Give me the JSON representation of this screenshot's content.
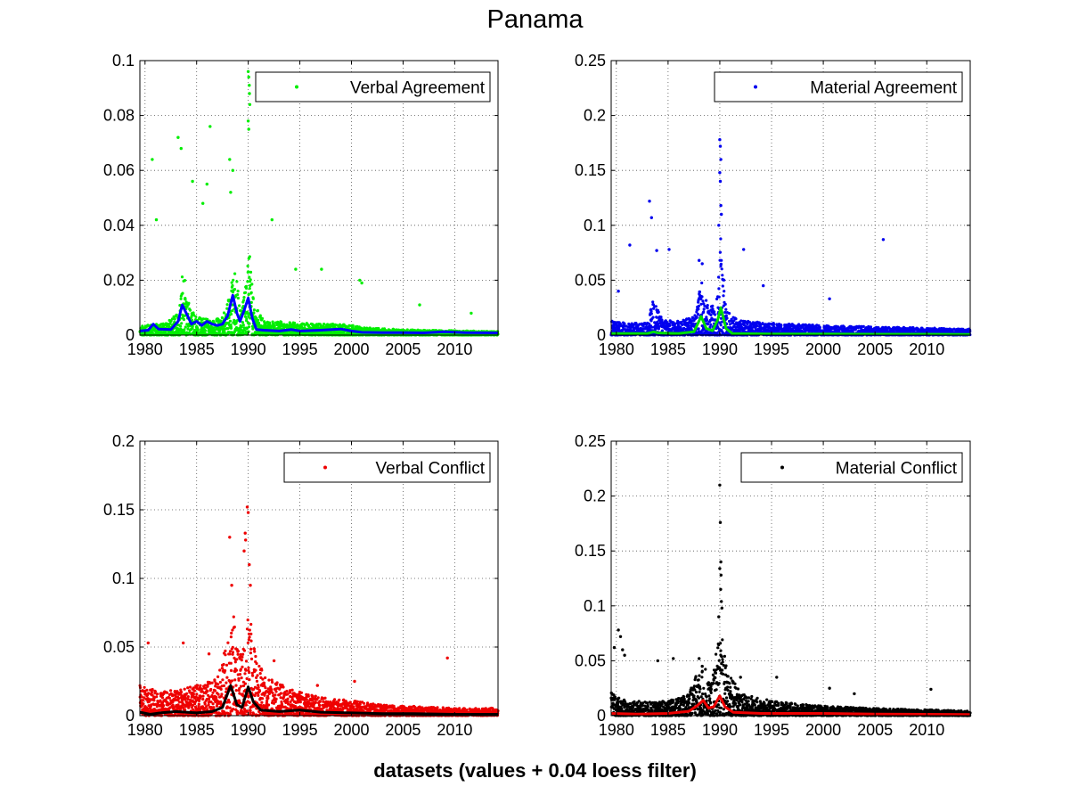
{
  "figure": {
    "title": "Panama",
    "xlabel": "datasets (values + 0.04 loess filter)"
  },
  "chart_data": [
    {
      "type": "scatter",
      "panel": "top-left",
      "legend_label": "Verbal Agreement",
      "legend_location": "top-right",
      "grid": true,
      "xlim": [
        1979.5,
        2014.2
      ],
      "ylim": [
        0,
        0.1
      ],
      "xticks": [
        1980,
        1985,
        1990,
        1995,
        2000,
        2005,
        2010
      ],
      "yticks": [
        0,
        0.02,
        0.04,
        0.06,
        0.08,
        0.1
      ],
      "ytick_labels": [
        "0",
        "0.02",
        "0.04",
        "0.06",
        "0.08",
        "0.1"
      ],
      "colors": {
        "points": "#00ee00",
        "smooth": "#0000ff"
      },
      "profile": [
        [
          1979.5,
          0.003
        ],
        [
          1982,
          0.004
        ],
        [
          1983.3,
          0.008
        ],
        [
          1983.7,
          0.024
        ],
        [
          1984.3,
          0.009
        ],
        [
          1985,
          0.006
        ],
        [
          1986.5,
          0.005
        ],
        [
          1987.5,
          0.006
        ],
        [
          1988.2,
          0.014
        ],
        [
          1988.7,
          0.025
        ],
        [
          1989.2,
          0.008
        ],
        [
          1989.8,
          0.017
        ],
        [
          1990.1,
          0.03
        ],
        [
          1990.6,
          0.01
        ],
        [
          1991.5,
          0.005
        ],
        [
          1995,
          0.004
        ],
        [
          2000,
          0.0035
        ],
        [
          2001,
          0.0025
        ],
        [
          2005,
          0.0018
        ],
        [
          2010,
          0.0015
        ],
        [
          2014.2,
          0.0012
        ]
      ],
      "outliers": [
        [
          1983.2,
          0.072
        ],
        [
          1983.5,
          0.068
        ],
        [
          1986.3,
          0.076
        ],
        [
          1980.7,
          0.064
        ],
        [
          1981.1,
          0.042
        ],
        [
          1988.2,
          0.064
        ],
        [
          1988.5,
          0.06
        ],
        [
          1988.3,
          0.052
        ],
        [
          1990.0,
          0.096
        ],
        [
          1990.05,
          0.094
        ],
        [
          1990.1,
          0.091
        ],
        [
          1990.12,
          0.088
        ],
        [
          1990.15,
          0.084
        ],
        [
          1990.0,
          0.078
        ],
        [
          1990.05,
          0.075
        ],
        [
          1992.3,
          0.042
        ],
        [
          1986.0,
          0.055
        ],
        [
          1984.6,
          0.056
        ],
        [
          1985.6,
          0.048
        ],
        [
          2000.8,
          0.02
        ],
        [
          2001.0,
          0.019
        ],
        [
          1997.1,
          0.024
        ],
        [
          1994.6,
          0.024
        ],
        [
          2006.6,
          0.011
        ],
        [
          2011.6,
          0.008
        ]
      ],
      "smooth": [
        [
          1979.5,
          0.0015
        ],
        [
          1980.3,
          0.0018
        ],
        [
          1980.8,
          0.004
        ],
        [
          1981.3,
          0.0022
        ],
        [
          1982.5,
          0.002
        ],
        [
          1983.2,
          0.005
        ],
        [
          1983.6,
          0.011
        ],
        [
          1984.0,
          0.008
        ],
        [
          1984.5,
          0.004
        ],
        [
          1985.0,
          0.005
        ],
        [
          1985.5,
          0.0035
        ],
        [
          1986.0,
          0.005
        ],
        [
          1986.5,
          0.004
        ],
        [
          1987.0,
          0.0035
        ],
        [
          1987.5,
          0.004
        ],
        [
          1988.0,
          0.007
        ],
        [
          1988.5,
          0.0145
        ],
        [
          1988.9,
          0.008
        ],
        [
          1989.2,
          0.005
        ],
        [
          1989.6,
          0.009
        ],
        [
          1990.0,
          0.0135
        ],
        [
          1990.4,
          0.006
        ],
        [
          1990.8,
          0.002
        ],
        [
          1991.5,
          0.0018
        ],
        [
          1993,
          0.0015
        ],
        [
          1994.2,
          0.002
        ],
        [
          1995,
          0.0015
        ],
        [
          1997,
          0.0018
        ],
        [
          1999,
          0.0022
        ],
        [
          2000,
          0.0015
        ],
        [
          2001,
          0.001
        ],
        [
          2003,
          0.0009
        ],
        [
          2005,
          0.0009
        ],
        [
          2007,
          0.0008
        ],
        [
          2009,
          0.0012
        ],
        [
          2011,
          0.0009
        ],
        [
          2014.2,
          0.0008
        ]
      ],
      "seed": 11
    },
    {
      "type": "scatter",
      "panel": "top-right",
      "legend_label": "Material Agreement",
      "legend_location": "top-right",
      "grid": true,
      "xlim": [
        1979.5,
        2014.2
      ],
      "ylim": [
        0,
        0.25
      ],
      "xticks": [
        1980,
        1985,
        1990,
        1995,
        2000,
        2005,
        2010
      ],
      "yticks": [
        0,
        0.05,
        0.1,
        0.15,
        0.2,
        0.25
      ],
      "ytick_labels": [
        "0",
        "0.05",
        "0.1",
        "0.15",
        "0.2",
        "0.25"
      ],
      "colors": {
        "points": "#0000ee",
        "smooth": "#00dd00"
      },
      "profile": [
        [
          1979.5,
          0.012
        ],
        [
          1981,
          0.01
        ],
        [
          1983,
          0.01
        ],
        [
          1983.5,
          0.03
        ],
        [
          1984.5,
          0.012
        ],
        [
          1986,
          0.012
        ],
        [
          1987.5,
          0.015
        ],
        [
          1988.2,
          0.045
        ],
        [
          1989,
          0.02
        ],
        [
          1989.8,
          0.04
        ],
        [
          1990.1,
          0.09
        ],
        [
          1990.7,
          0.02
        ],
        [
          1992,
          0.012
        ],
        [
          1995,
          0.01
        ],
        [
          2000,
          0.008
        ],
        [
          2005,
          0.007
        ],
        [
          2010,
          0.006
        ],
        [
          2014.2,
          0.005
        ]
      ],
      "outliers": [
        [
          1983.2,
          0.122
        ],
        [
          1983.4,
          0.107
        ],
        [
          1981.3,
          0.082
        ],
        [
          1983.9,
          0.077
        ],
        [
          1985.1,
          0.078
        ],
        [
          1988.0,
          0.068
        ],
        [
          1988.3,
          0.065
        ],
        [
          1990.0,
          0.178
        ],
        [
          1990.05,
          0.172
        ],
        [
          1990.1,
          0.16
        ],
        [
          1990.0,
          0.148
        ],
        [
          1990.05,
          0.14
        ],
        [
          1990.1,
          0.118
        ],
        [
          1990.15,
          0.11
        ],
        [
          1989.9,
          0.1
        ],
        [
          1992.3,
          0.078
        ],
        [
          2005.8,
          0.087
        ],
        [
          1994.2,
          0.045
        ],
        [
          2000.6,
          0.033
        ],
        [
          1980.2,
          0.04
        ]
      ],
      "smooth": [
        [
          1979.5,
          0.0015
        ],
        [
          1983,
          0.0015
        ],
        [
          1983.6,
          0.003
        ],
        [
          1984,
          0.002
        ],
        [
          1986,
          0.0015
        ],
        [
          1987.5,
          0.003
        ],
        [
          1988.2,
          0.017
        ],
        [
          1988.7,
          0.006
        ],
        [
          1989.3,
          0.004
        ],
        [
          1989.8,
          0.014
        ],
        [
          1990.1,
          0.025
        ],
        [
          1990.6,
          0.006
        ],
        [
          1991.2,
          0.0015
        ],
        [
          1995,
          0.001
        ],
        [
          2000,
          0.001
        ],
        [
          2005,
          0.0008
        ],
        [
          2010,
          0.0008
        ],
        [
          2014.2,
          0.0006
        ]
      ],
      "seed": 23
    },
    {
      "type": "scatter",
      "panel": "bottom-left",
      "legend_label": "Verbal Conflict",
      "legend_location": "top-right",
      "grid": true,
      "xlim": [
        1979.5,
        2014.2
      ],
      "ylim": [
        0,
        0.2
      ],
      "xticks": [
        1980,
        1985,
        1990,
        1995,
        2000,
        2005,
        2010
      ],
      "yticks": [
        0,
        0.05,
        0.1,
        0.15,
        0.2
      ],
      "ytick_labels": [
        "0",
        "0.05",
        "0.1",
        "0.15",
        "0.2"
      ],
      "colors": {
        "points": "#ee0000",
        "smooth": "#000000"
      },
      "profile": [
        [
          1979.5,
          0.02
        ],
        [
          1981,
          0.017
        ],
        [
          1983,
          0.017
        ],
        [
          1985,
          0.02
        ],
        [
          1987,
          0.025
        ],
        [
          1988,
          0.05
        ],
        [
          1988.5,
          0.07
        ],
        [
          1989.2,
          0.04
        ],
        [
          1989.8,
          0.06
        ],
        [
          1990.2,
          0.07
        ],
        [
          1990.8,
          0.035
        ],
        [
          1992,
          0.025
        ],
        [
          1994,
          0.018
        ],
        [
          1997,
          0.012
        ],
        [
          2000,
          0.01
        ],
        [
          2003,
          0.007
        ],
        [
          2007,
          0.006
        ],
        [
          2010,
          0.005
        ],
        [
          2014.2,
          0.005
        ]
      ],
      "outliers": [
        [
          1989.9,
          0.152
        ],
        [
          1990.0,
          0.148
        ],
        [
          1989.7,
          0.133
        ],
        [
          1989.75,
          0.128
        ],
        [
          1989.6,
          0.12
        ],
        [
          1988.2,
          0.13
        ],
        [
          1988.4,
          0.095
        ],
        [
          1990.1,
          0.11
        ],
        [
          1990.2,
          0.095
        ],
        [
          1980.3,
          0.053
        ],
        [
          1983.7,
          0.053
        ],
        [
          2009.3,
          0.042
        ],
        [
          1986.2,
          0.045
        ],
        [
          1992.5,
          0.04
        ],
        [
          2000.3,
          0.025
        ],
        [
          1996.7,
          0.022
        ]
      ],
      "smooth": [
        [
          1979.5,
          0.0025
        ],
        [
          1980.5,
          0.001
        ],
        [
          1981.5,
          0.002
        ],
        [
          1983,
          0.003
        ],
        [
          1985,
          0.002
        ],
        [
          1986.5,
          0.003
        ],
        [
          1987.5,
          0.006
        ],
        [
          1988.3,
          0.022
        ],
        [
          1988.9,
          0.008
        ],
        [
          1989.4,
          0.006
        ],
        [
          1990.0,
          0.021
        ],
        [
          1990.5,
          0.01
        ],
        [
          1991.2,
          0.004
        ],
        [
          1993,
          0.003
        ],
        [
          1995,
          0.004
        ],
        [
          1997,
          0.0025
        ],
        [
          2000,
          0.002
        ],
        [
          2003,
          0.0015
        ],
        [
          2006,
          0.0015
        ],
        [
          2010,
          0.001
        ],
        [
          2014.2,
          0.001
        ]
      ],
      "seed": 37
    },
    {
      "type": "scatter",
      "panel": "bottom-right",
      "legend_label": "Material Conflict",
      "legend_location": "top-right",
      "grid": true,
      "xlim": [
        1979.5,
        2014.2
      ],
      "ylim": [
        0,
        0.25
      ],
      "xticks": [
        1980,
        1985,
        1990,
        1995,
        2000,
        2005,
        2010
      ],
      "yticks": [
        0,
        0.05,
        0.1,
        0.15,
        0.2,
        0.25
      ],
      "ytick_labels": [
        "0",
        "0.05",
        "0.1",
        "0.15",
        "0.2",
        "0.25"
      ],
      "colors": {
        "points": "#000000",
        "smooth": "#ee0000"
      },
      "profile": [
        [
          1979.5,
          0.02
        ],
        [
          1981,
          0.012
        ],
        [
          1983,
          0.012
        ],
        [
          1985,
          0.012
        ],
        [
          1987,
          0.018
        ],
        [
          1987.8,
          0.035
        ],
        [
          1988.5,
          0.04
        ],
        [
          1989.2,
          0.03
        ],
        [
          1989.8,
          0.06
        ],
        [
          1990.2,
          0.07
        ],
        [
          1990.8,
          0.035
        ],
        [
          1992,
          0.02
        ],
        [
          1995,
          0.012
        ],
        [
          2000,
          0.008
        ],
        [
          2005,
          0.006
        ],
        [
          2010,
          0.005
        ],
        [
          2014.2,
          0.004
        ]
      ],
      "outliers": [
        [
          1990.0,
          0.21
        ],
        [
          1990.05,
          0.176
        ],
        [
          1990.1,
          0.14
        ],
        [
          1990.0,
          0.134
        ],
        [
          1990.12,
          0.128
        ],
        [
          1990.08,
          0.115
        ],
        [
          1990.15,
          0.104
        ],
        [
          1990.2,
          0.098
        ],
        [
          1989.9,
          0.09
        ],
        [
          1980.2,
          0.078
        ],
        [
          1980.4,
          0.072
        ],
        [
          1980.6,
          0.06
        ],
        [
          1980.8,
          0.055
        ],
        [
          1979.8,
          0.062
        ],
        [
          1985.5,
          0.052
        ],
        [
          1984.0,
          0.05
        ],
        [
          1988.0,
          0.052
        ],
        [
          1988.3,
          0.045
        ],
        [
          1992.0,
          0.035
        ],
        [
          1995.5,
          0.035
        ],
        [
          2000.6,
          0.025
        ],
        [
          2003.0,
          0.02
        ],
        [
          2010.4,
          0.024
        ]
      ],
      "smooth": [
        [
          1979.5,
          0.002
        ],
        [
          1982,
          0.0015
        ],
        [
          1985,
          0.002
        ],
        [
          1987,
          0.004
        ],
        [
          1987.8,
          0.009
        ],
        [
          1988.4,
          0.014
        ],
        [
          1988.9,
          0.007
        ],
        [
          1989.4,
          0.008
        ],
        [
          1990.0,
          0.018
        ],
        [
          1990.5,
          0.008
        ],
        [
          1991.3,
          0.003
        ],
        [
          1994,
          0.002
        ],
        [
          2000,
          0.002
        ],
        [
          2005,
          0.0015
        ],
        [
          2010,
          0.0012
        ],
        [
          2014.2,
          0.001
        ]
      ],
      "seed": 53
    }
  ]
}
